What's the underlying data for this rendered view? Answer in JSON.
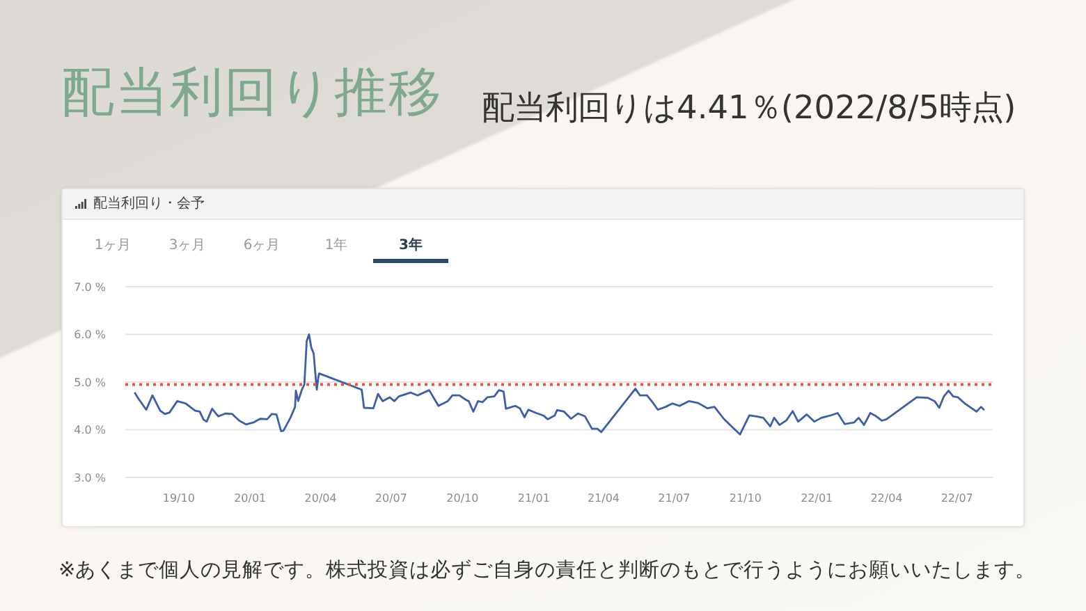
{
  "chart_data": {
    "type": "line",
    "title": "配当利回り推移",
    "subtitle": "配当利回りは4.41％(2022/8/5時点)",
    "annotations": [
      "配当利回り・会予",
      "1ヶ月",
      "3ヶ月",
      "6ヶ月",
      "1年",
      "3年",
      "※あくまで個人の見解です。株式投資は必ずご自身の責任と判断のもとで行うようにお願いいたします。"
    ],
    "x": [
      "2019-08-05",
      "2019-08-10",
      "2019-08-20",
      "2019-08-28",
      "2019-09-07",
      "2019-09-13",
      "2019-09-19",
      "2019-09-29",
      "2019-10-10",
      "2019-10-22",
      "2019-10-28",
      "2019-11-02",
      "2019-11-06",
      "2019-11-13",
      "2019-11-21",
      "2019-11-30",
      "2019-12-09",
      "2019-12-12",
      "2019-12-18",
      "2019-12-27",
      "2020-01-05",
      "2020-01-14",
      "2020-01-23",
      "2020-01-29",
      "2020-02-04",
      "2020-02-10",
      "2020-02-13",
      "2020-02-22",
      "2020-02-28",
      "2020-02-29",
      "2020-03-03",
      "2020-03-08",
      "2020-03-11",
      "2020-03-14",
      "2020-03-17",
      "2020-03-20",
      "2020-03-23",
      "2020-03-24",
      "2020-03-27",
      "2020-03-29",
      "2020-03-30",
      "2020-05-24",
      "2020-05-27",
      "2020-06-08",
      "2020-06-14",
      "2020-06-20",
      "2020-06-29",
      "2020-07-05",
      "2020-07-11",
      "2020-07-26",
      "2020-08-04",
      "2020-08-19",
      "2020-08-31",
      "2020-09-12",
      "2020-09-18",
      "2020-09-27",
      "2020-10-06",
      "2020-10-09",
      "2020-10-15",
      "2020-10-21",
      "2020-10-27",
      "2020-11-02",
      "2020-11-11",
      "2020-11-17",
      "2020-11-23",
      "2020-11-26",
      "2020-12-08",
      "2020-12-14",
      "2020-12-20",
      "2020-12-25",
      "2021-01-04",
      "2021-01-13",
      "2021-01-19",
      "2021-01-28",
      "2021-01-31",
      "2021-02-09",
      "2021-02-18",
      "2021-02-27",
      "2021-03-08",
      "2021-03-17",
      "2021-03-24",
      "2021-03-29",
      "2021-05-12",
      "2021-05-18",
      "2021-05-27",
      "2021-06-02",
      "2021-06-10",
      "2021-06-20",
      "2021-06-29",
      "2021-07-08",
      "2021-07-20",
      "2021-08-01",
      "2021-08-13",
      "2021-08-22",
      "2021-09-03",
      "2021-09-15",
      "2021-09-24",
      "2021-09-30",
      "2021-10-06",
      "2021-10-15",
      "2021-10-24",
      "2021-11-02",
      "2021-11-07",
      "2021-11-14",
      "2021-11-23",
      "2021-12-01",
      "2021-12-08",
      "2021-12-19",
      "2021-12-29",
      "2022-01-07",
      "2022-01-19",
      "2022-01-28",
      "2022-02-06",
      "2022-02-18",
      "2022-02-24",
      "2022-03-03",
      "2022-03-11",
      "2022-03-17",
      "2022-03-26",
      "2022-04-01",
      "2022-05-10",
      "2022-05-24",
      "2022-06-02",
      "2022-06-08",
      "2022-06-14",
      "2022-06-20",
      "2022-06-26",
      "2022-07-02",
      "2022-07-11",
      "2022-07-20",
      "2022-07-26",
      "2022-08-01",
      "2022-08-05"
    ],
    "values": [
      4.78,
      4.65,
      4.42,
      4.72,
      4.4,
      4.33,
      4.36,
      4.6,
      4.55,
      4.4,
      4.38,
      4.21,
      4.17,
      4.44,
      4.28,
      4.34,
      4.33,
      4.28,
      4.19,
      4.11,
      4.15,
      4.23,
      4.22,
      4.33,
      4.32,
      3.97,
      3.98,
      4.25,
      4.48,
      4.82,
      4.6,
      4.85,
      4.95,
      5.86,
      6.0,
      5.72,
      5.6,
      5.4,
      4.84,
      5.1,
      5.18,
      4.84,
      4.46,
      4.45,
      4.75,
      4.6,
      4.68,
      4.6,
      4.7,
      4.78,
      4.72,
      4.83,
      4.5,
      4.6,
      4.72,
      4.72,
      4.62,
      4.6,
      4.38,
      4.6,
      4.58,
      4.68,
      4.7,
      4.83,
      4.8,
      4.44,
      4.5,
      4.45,
      4.26,
      4.42,
      4.35,
      4.3,
      4.22,
      4.3,
      4.41,
      4.38,
      4.23,
      4.34,
      4.28,
      4.02,
      4.02,
      3.95,
      4.86,
      4.72,
      4.72,
      4.6,
      4.42,
      4.48,
      4.55,
      4.5,
      4.6,
      4.56,
      4.45,
      4.48,
      4.23,
      4.04,
      3.9,
      4.1,
      4.3,
      4.28,
      4.25,
      4.07,
      4.25,
      4.1,
      4.2,
      4.39,
      4.17,
      4.32,
      4.17,
      4.25,
      4.3,
      4.35,
      4.12,
      4.15,
      4.25,
      4.1,
      4.35,
      4.3,
      4.19,
      4.22,
      4.68,
      4.67,
      4.6,
      4.46,
      4.7,
      4.82,
      4.7,
      4.68,
      4.55,
      4.45,
      4.38,
      4.48,
      4.41
    ],
    "color": "#3d5fa8",
    "xlim": [
      "2019-07-24",
      "2022-08-16"
    ],
    "xticks": [
      {
        "value": "2019-10-01",
        "label": "19/10"
      },
      {
        "value": "2020-01-01",
        "label": "20/01"
      },
      {
        "value": "2020-04-01",
        "label": "20/04"
      },
      {
        "value": "2020-07-01",
        "label": "20/07"
      },
      {
        "value": "2020-10-01",
        "label": "20/10"
      },
      {
        "value": "2021-01-01",
        "label": "21/01"
      },
      {
        "value": "2021-04-01",
        "label": "21/04"
      },
      {
        "value": "2021-07-01",
        "label": "21/07"
      },
      {
        "value": "2021-10-01",
        "label": "21/10"
      },
      {
        "value": "2022-01-01",
        "label": "22/01"
      },
      {
        "value": "2022-04-01",
        "label": "22/04"
      },
      {
        "value": "2022-07-01",
        "label": "22/07"
      }
    ],
    "ylim": [
      3,
      7
    ],
    "yticks": [
      {
        "value": 3,
        "label": "3.0 %"
      },
      {
        "value": 4,
        "label": "4.0 %"
      },
      {
        "value": 5,
        "label": "5.0 %"
      },
      {
        "value": 6,
        "label": "6.0 %"
      },
      {
        "value": 7,
        "label": "7.0 %"
      }
    ],
    "grid": "y",
    "ref_lines": [
      {
        "axis": "y",
        "value": 4.95,
        "color": "#e4553b",
        "line_style": "dotted"
      }
    ]
  }
}
